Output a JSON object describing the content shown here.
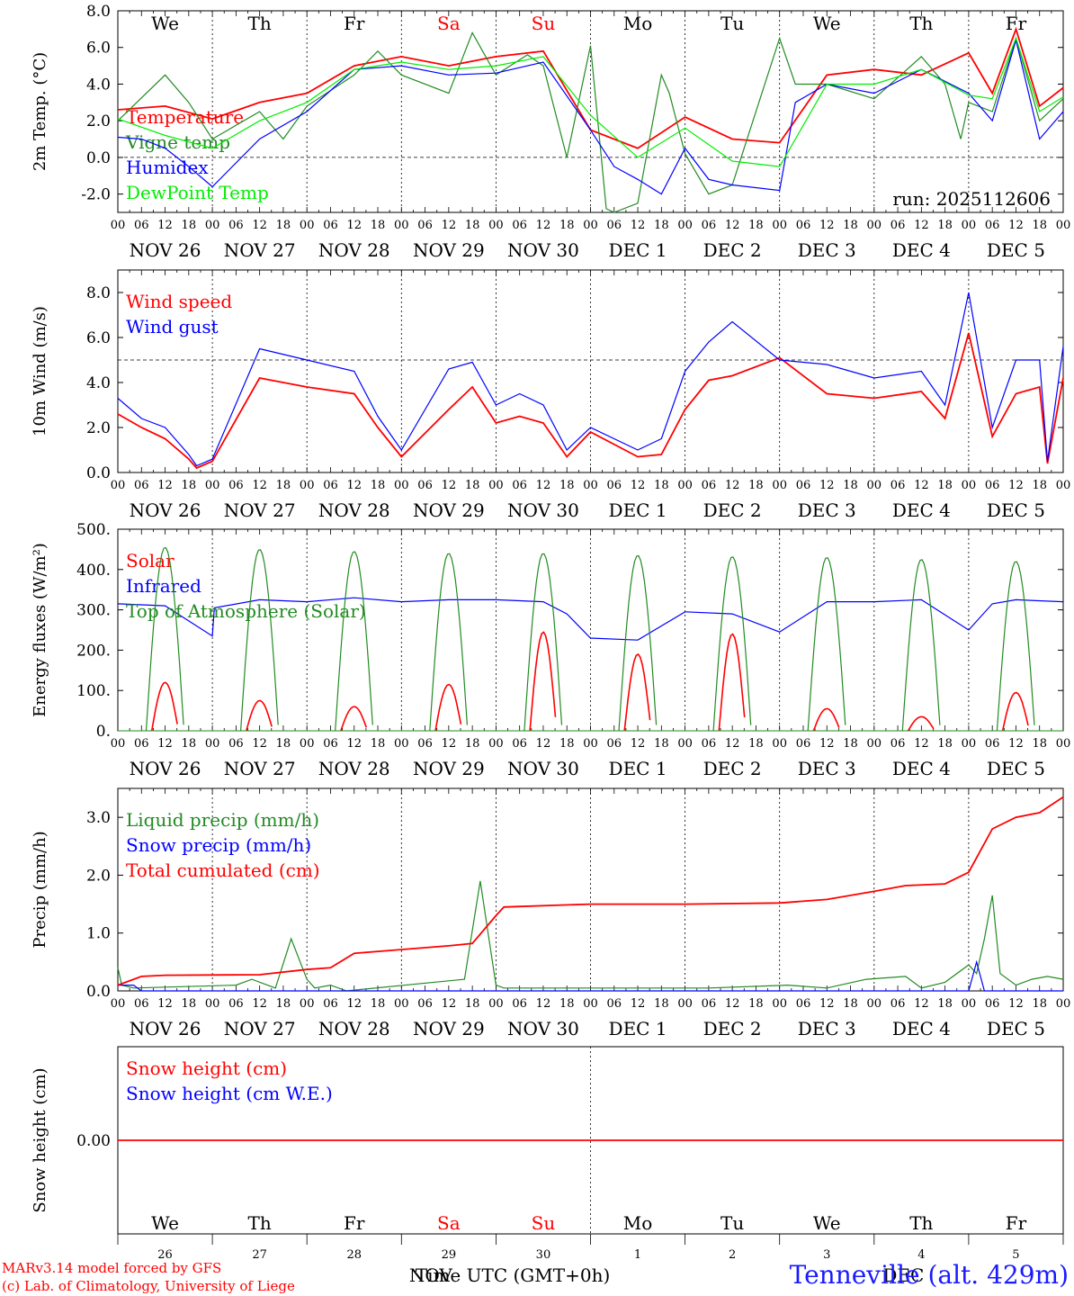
{
  "run_label": "run: 2025112606",
  "time_axis": {
    "hour_ticks": [
      "00",
      "06",
      "12",
      "18"
    ],
    "date_labels": [
      "NOV 26",
      "NOV 27",
      "NOV 28",
      "NOV 29",
      "NOV 30",
      "DEC  1",
      "DEC  2",
      "DEC  3",
      "DEC  4",
      "DEC  5"
    ],
    "day_labels": [
      "We",
      "Th",
      "Fr",
      "Sa",
      "Su",
      "Mo",
      "Tu",
      "We",
      "Th",
      "Fr"
    ],
    "day_colors": [
      "#000000",
      "#000000",
      "#000000",
      "#ff0000",
      "#ff0000",
      "#000000",
      "#000000",
      "#000000",
      "#000000",
      "#000000"
    ],
    "day_numbers": [
      "26",
      "27",
      "28",
      "29",
      "30",
      "1",
      "2",
      "3",
      "4",
      "5"
    ],
    "month_labels": [
      "NOV",
      "DEC"
    ],
    "xlabel": "Time UTC (GMT+0h)"
  },
  "chart_data": [
    {
      "type": "line",
      "ylabel": "2m Temp. (°C)",
      "ylim": [
        -3,
        8
      ],
      "yticks": [
        "8.0",
        "6.0",
        "4.0",
        "2.0",
        "0.0",
        "-2.0"
      ],
      "ytick_values": [
        8,
        6,
        4,
        2,
        0,
        -2
      ],
      "ref_line": 0,
      "series": [
        {
          "name": "Temperature",
          "color": "#ff0000",
          "hours": [
            0,
            12,
            24,
            36,
            48,
            60,
            72,
            84,
            96,
            108,
            120,
            132,
            144,
            156,
            168,
            180,
            192,
            204,
            216,
            222,
            228,
            234,
            240
          ],
          "values": [
            2.6,
            2.8,
            2.1,
            3.0,
            3.5,
            5.0,
            5.5,
            5.0,
            5.5,
            5.8,
            1.5,
            0.5,
            2.2,
            1.0,
            0.8,
            4.5,
            4.8,
            4.5,
            5.7,
            3.5,
            7.0,
            2.8,
            3.8
          ]
        },
        {
          "name": "Vigne temp",
          "color": "#228b22",
          "hours": [
            0,
            12,
            18,
            24,
            36,
            42,
            48,
            60,
            66,
            72,
            84,
            90,
            96,
            104,
            108,
            114,
            120,
            124,
            126,
            132,
            138,
            140,
            144,
            150,
            156,
            168,
            172,
            180,
            192,
            204,
            210,
            214,
            216,
            222,
            228,
            234,
            240
          ],
          "values": [
            2.0,
            4.5,
            3.0,
            1.0,
            2.5,
            1.0,
            2.8,
            4.5,
            5.8,
            4.5,
            3.5,
            6.8,
            4.5,
            5.6,
            5.0,
            0.0,
            6.1,
            -2.8,
            -3.0,
            -2.5,
            4.5,
            3.5,
            0.2,
            -2.0,
            -1.5,
            6.5,
            4.0,
            4.0,
            3.2,
            5.5,
            4.0,
            1.0,
            3.0,
            2.5,
            6.5,
            2.0,
            3.2
          ]
        },
        {
          "name": "Humidex",
          "color": "#0000ff",
          "hours": [
            0,
            6,
            12,
            18,
            24,
            36,
            48,
            60,
            72,
            84,
            96,
            108,
            120,
            126,
            132,
            138,
            144,
            150,
            156,
            168,
            172,
            180,
            192,
            204,
            216,
            222,
            228,
            234,
            240
          ],
          "values": [
            1.1,
            1.0,
            0.5,
            -0.5,
            -1.6,
            1.0,
            2.5,
            4.8,
            5.0,
            4.5,
            4.6,
            5.2,
            1.5,
            -0.5,
            -1.2,
            -2.0,
            0.5,
            -1.2,
            -1.5,
            -1.8,
            3.0,
            4.0,
            3.5,
            4.8,
            3.5,
            2.0,
            6.4,
            1.0,
            2.5
          ]
        },
        {
          "name": "DewPoint Temp",
          "color": "#00ee00",
          "hours": [
            0,
            12,
            24,
            36,
            48,
            60,
            72,
            84,
            96,
            108,
            120,
            132,
            144,
            156,
            168,
            180,
            192,
            204,
            216,
            222,
            228,
            234,
            240
          ],
          "values": [
            2.1,
            1.2,
            0.5,
            2.0,
            3.0,
            4.8,
            5.2,
            4.8,
            5.0,
            5.5,
            2.3,
            0.0,
            1.6,
            -0.2,
            -0.5,
            4.0,
            4.0,
            4.8,
            3.4,
            3.2,
            6.5,
            2.5,
            3.3
          ]
        }
      ]
    },
    {
      "type": "line",
      "ylabel": "10m Wind (m/s)",
      "ylim": [
        0,
        9
      ],
      "yticks": [
        "8.0",
        "6.0",
        "4.0",
        "2.0",
        "0.0"
      ],
      "ytick_values": [
        8,
        6,
        4,
        2,
        0
      ],
      "ref_line": 5,
      "series": [
        {
          "name": "Wind speed",
          "color": "#ff0000",
          "hours": [
            0,
            6,
            12,
            18,
            20,
            24,
            36,
            48,
            60,
            66,
            72,
            84,
            90,
            96,
            102,
            108,
            114,
            120,
            132,
            138,
            144,
            150,
            156,
            168,
            180,
            192,
            204,
            210,
            216,
            222,
            228,
            234,
            236,
            240
          ],
          "values": [
            2.6,
            2.0,
            1.5,
            0.6,
            0.2,
            0.5,
            4.2,
            3.8,
            3.5,
            2.0,
            0.7,
            2.8,
            3.8,
            2.2,
            2.5,
            2.2,
            0.7,
            1.8,
            0.7,
            0.8,
            2.8,
            4.1,
            4.3,
            5.1,
            3.5,
            3.3,
            3.6,
            2.4,
            6.2,
            1.6,
            3.5,
            3.8,
            0.4,
            4.2
          ]
        },
        {
          "name": "Wind gust",
          "color": "#0000ff",
          "hours": [
            0,
            6,
            12,
            18,
            20,
            24,
            36,
            48,
            60,
            66,
            72,
            84,
            90,
            96,
            102,
            108,
            114,
            120,
            132,
            138,
            144,
            150,
            156,
            168,
            180,
            192,
            204,
            210,
            216,
            222,
            228,
            234,
            236,
            240
          ],
          "values": [
            3.3,
            2.4,
            2.0,
            0.8,
            0.3,
            0.6,
            5.5,
            5.0,
            4.5,
            2.5,
            1.0,
            4.6,
            4.9,
            3.0,
            3.5,
            3.0,
            1.0,
            2.0,
            1.0,
            1.5,
            4.5,
            5.8,
            6.7,
            5.0,
            4.8,
            4.2,
            4.5,
            3.0,
            8.0,
            2.0,
            5.0,
            5.0,
            0.5,
            5.6
          ]
        }
      ]
    },
    {
      "type": "line",
      "ylabel": "Energy fluxes (W/m²)",
      "ylim": [
        0,
        500
      ],
      "yticks": [
        "500.",
        "400.",
        "300.",
        "200.",
        "100.",
        "0."
      ],
      "ytick_values": [
        500,
        400,
        300,
        200,
        100,
        0
      ],
      "series": [
        {
          "name": "Solar",
          "color": "#ff0000",
          "day_peaks": [
            120,
            75,
            60,
            115,
            245,
            190,
            240,
            55,
            35,
            95
          ]
        },
        {
          "name": "Infrared",
          "color": "#0000ff",
          "hours": [
            0,
            12,
            24,
            24.5,
            36,
            48,
            60,
            72,
            84,
            96,
            108,
            114,
            120,
            132,
            144,
            156,
            168,
            180,
            192,
            204,
            216,
            222,
            228,
            240
          ],
          "values": [
            315,
            310,
            235,
            305,
            325,
            320,
            330,
            320,
            325,
            325,
            320,
            290,
            230,
            225,
            295,
            290,
            245,
            320,
            320,
            325,
            250,
            315,
            325,
            320
          ]
        },
        {
          "name": "Top of Atmosphere (Solar)",
          "color": "#228b22",
          "day_peaks": [
            455,
            450,
            445,
            440,
            440,
            435,
            432,
            430,
            425,
            420
          ]
        }
      ]
    },
    {
      "type": "line",
      "ylabel": "Precip (mm/h)",
      "ylim": [
        0,
        3.5
      ],
      "yticks": [
        "3.0",
        "2.0",
        "1.0",
        "0.0"
      ],
      "ytick_values": [
        3,
        2,
        1,
        0
      ],
      "series": [
        {
          "name": "Liquid precip (mm/h)",
          "color": "#228b22",
          "hours": [
            0,
            1,
            4,
            30,
            34,
            40,
            44,
            48,
            50,
            54,
            58,
            88,
            92,
            94,
            96,
            98,
            102,
            150,
            170,
            180,
            190,
            200,
            204,
            210,
            216,
            218,
            220,
            222,
            224,
            228,
            232,
            236,
            240
          ],
          "values": [
            0.4,
            0.1,
            0.05,
            0.1,
            0.2,
            0.05,
            0.9,
            0.2,
            0.05,
            0.1,
            0.0,
            0.2,
            1.9,
            1.0,
            0.1,
            0.05,
            0.05,
            0.05,
            0.1,
            0.05,
            0.2,
            0.25,
            0.05,
            0.15,
            0.45,
            0.3,
            0.9,
            1.65,
            0.3,
            0.1,
            0.2,
            0.25,
            0.2
          ]
        },
        {
          "name": "Snow precip (mm/h)",
          "color": "#0000ff",
          "hours": [
            0,
            4,
            6,
            216,
            218,
            220,
            240
          ],
          "values": [
            0.1,
            0.1,
            0.0,
            0.0,
            0.5,
            0.0,
            0.0
          ]
        },
        {
          "name": "Total cumulated (cm)",
          "color": "#ff0000",
          "hours": [
            0,
            6,
            12,
            36,
            48,
            54,
            60,
            84,
            90,
            96,
            98,
            120,
            144,
            168,
            180,
            192,
            200,
            210,
            216,
            218,
            222,
            228,
            234,
            240
          ],
          "values": [
            0.1,
            0.25,
            0.27,
            0.28,
            0.37,
            0.4,
            0.65,
            0.78,
            0.82,
            1.3,
            1.45,
            1.5,
            1.5,
            1.52,
            1.58,
            1.72,
            1.82,
            1.85,
            2.05,
            2.3,
            2.8,
            3.0,
            3.08,
            3.35
          ]
        }
      ]
    },
    {
      "type": "line",
      "ylabel": "Snow height (cm)",
      "ylim": [
        -1,
        1
      ],
      "yticks": [
        "0.00"
      ],
      "ytick_values": [
        0
      ],
      "series": [
        {
          "name": "Snow height (cm)",
          "color": "#ff0000",
          "hours": [
            0,
            240
          ],
          "values": [
            0,
            0
          ]
        },
        {
          "name": "Snow height (cm W.E.)",
          "color": "#0000ff",
          "hours": [],
          "values": []
        }
      ]
    }
  ],
  "footer": {
    "credit_line1": "MARv3.14 model forced by GFS",
    "credit_line2": "(c) Lab. of Climatology, University of Liege",
    "location": "Tenneville (alt. 429m)"
  },
  "colors": {
    "red": "#ff0000",
    "green": "#228b22",
    "blue": "#0000ff",
    "light_green": "#00ee00",
    "location": "#1a1aff"
  }
}
